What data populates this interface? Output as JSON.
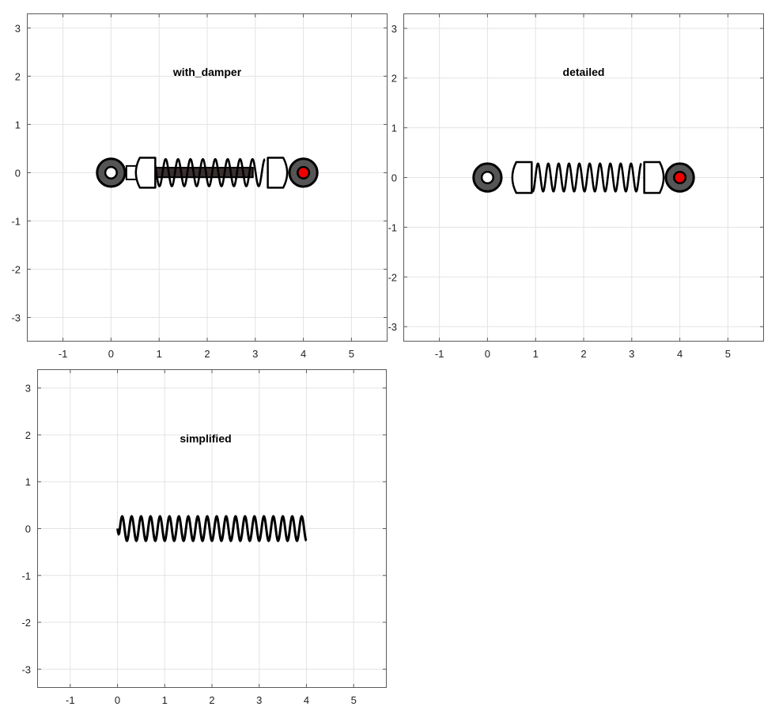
{
  "chart_data": [
    {
      "type": "diagram",
      "title": "with_damper",
      "xlim": [
        -1.75,
        5.75
      ],
      "ylim": [
        -3.5,
        3.3
      ],
      "xticks": [
        -1,
        0,
        1,
        2,
        3,
        4,
        5
      ],
      "yticks": [
        -3,
        -2,
        -1,
        0,
        1,
        2,
        3
      ],
      "grid": true,
      "spring": {
        "start": [
          0,
          0
        ],
        "end": [
          4,
          0
        ],
        "coils": 10,
        "style": "detailed"
      },
      "damper": true,
      "anchor_colors": {
        "start_dot": "#ffffff",
        "end_dot": "#ee0000",
        "ring": "#555555",
        "rod": "#3a3030"
      }
    },
    {
      "type": "diagram",
      "title": "detailed",
      "xlim": [
        -1.75,
        5.75
      ],
      "ylim": [
        -3.3,
        3.3
      ],
      "xticks": [
        -1,
        0,
        1,
        2,
        3,
        4,
        5
      ],
      "yticks": [
        -3,
        -2,
        -1,
        0,
        1,
        2,
        3
      ],
      "grid": true,
      "spring": {
        "start": [
          0,
          0
        ],
        "end": [
          4,
          0
        ],
        "coils": 12,
        "style": "detailed"
      },
      "damper": false,
      "anchor_colors": {
        "start_dot": "#ffffff",
        "end_dot": "#ee0000",
        "ring": "#555555"
      }
    },
    {
      "type": "diagram",
      "title": "simplified",
      "xlim": [
        -1.7,
        5.7
      ],
      "ylim": [
        -3.4,
        3.4
      ],
      "xticks": [
        -1,
        0,
        1,
        2,
        3,
        4,
        5
      ],
      "yticks": [
        -3,
        -2,
        -1,
        0,
        1,
        2,
        3
      ],
      "grid": true,
      "spring": {
        "start": [
          0,
          0
        ],
        "end": [
          4,
          0
        ],
        "coils": 20,
        "amplitude": 0.26,
        "style": "simplified"
      },
      "damper": false
    }
  ]
}
